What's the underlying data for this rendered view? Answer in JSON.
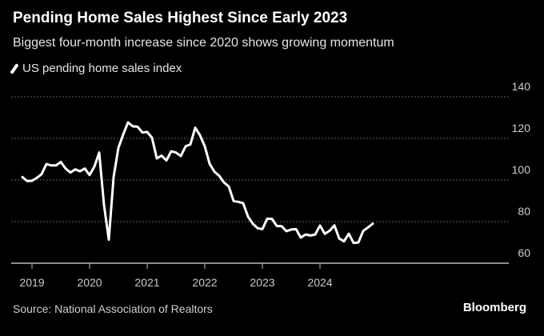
{
  "chart_data": {
    "type": "line",
    "title": "Pending Home Sales Highest Since Early 2023",
    "subtitle": "Biggest four-month increase since 2020 shows growing momentum",
    "legend": [
      "US pending home sales index"
    ],
    "legend_placement": "top-left",
    "source": "Source: National Association of Realtors",
    "brand": "Bloomberg",
    "x_start": "2018-11",
    "x_frequency": "monthly",
    "x_ticks": [
      "2019",
      "2020",
      "2021",
      "2022",
      "2023",
      "2024"
    ],
    "y_ticks": [
      "60",
      "80",
      "100",
      "120",
      "140"
    ],
    "ylim": [
      60,
      140
    ],
    "grid": true,
    "series": [
      {
        "name": "US pending home sales index",
        "color": "#ffffff",
        "values": [
          101.4,
          99.5,
          99.6,
          101,
          102.8,
          107.7,
          107,
          107,
          108.7,
          105.5,
          103.6,
          105.1,
          104.2,
          105.5,
          102.4,
          106.5,
          113.2,
          88,
          71.3,
          101.4,
          115.5,
          121.9,
          127.7,
          125.8,
          125.6,
          122.8,
          123.1,
          120.3,
          110.4,
          111.7,
          109.4,
          113.8,
          113.2,
          111.5,
          116.2,
          117.1,
          125.1,
          121.5,
          116.2,
          107.8,
          104,
          102,
          98.8,
          96.9,
          89.9,
          89.5,
          88.8,
          82.4,
          79,
          76.8,
          76.4,
          81.4,
          81.3,
          77.9,
          77.8,
          75.4,
          76.2,
          76.4,
          72.3,
          73.8,
          73.3,
          73.8,
          78.1,
          74.1,
          75.6,
          78.2,
          71.9,
          70.5,
          74.2,
          69.7,
          70,
          75.5,
          77.2,
          79
        ]
      }
    ]
  }
}
